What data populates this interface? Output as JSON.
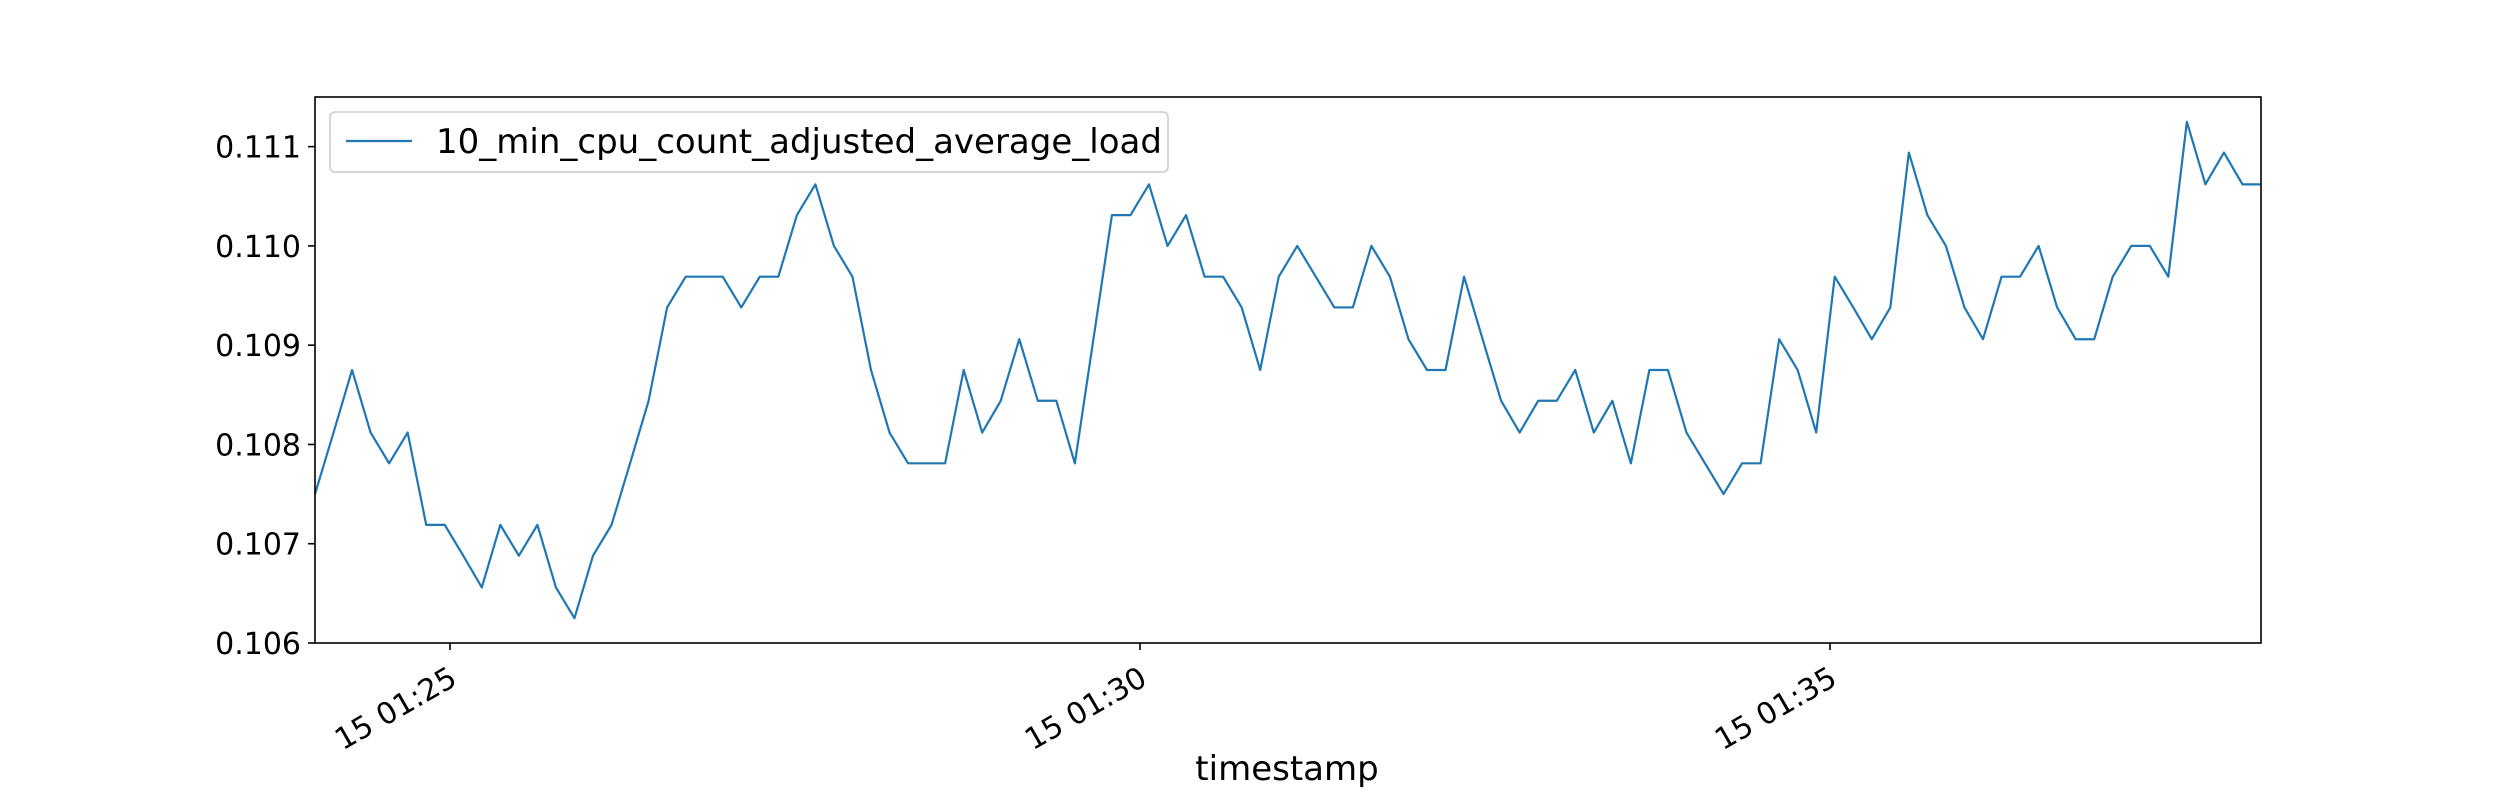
{
  "chart_data": {
    "type": "line",
    "title": "",
    "xlabel": "timestamp",
    "ylabel": "",
    "x_tick_labels": [
      "15 01:25",
      "15 01:30",
      "15 01:35"
    ],
    "y_tick_labels": [
      "0.106",
      "0.107",
      "0.108",
      "0.109",
      "0.110",
      "0.111"
    ],
    "y_ticks": [
      0.106,
      0.107,
      0.108,
      0.109,
      0.11,
      0.111
    ],
    "ylim": [
      0.106,
      0.1115
    ],
    "grid": false,
    "legend_position": "top-left",
    "series": [
      {
        "name": "10_min_cpu_count_adjusted_average_load",
        "color": "#1f77b4",
        "values": [
          0.1075,
          0.10812,
          0.10875,
          0.10812,
          0.10781,
          0.10812,
          0.10719,
          0.10719,
          0.10688,
          0.10656,
          0.10719,
          0.10688,
          0.10719,
          0.10656,
          0.10625,
          0.10688,
          0.10719,
          0.10781,
          0.10844,
          0.10938,
          0.10969,
          0.10969,
          0.10969,
          0.10938,
          0.10969,
          0.10969,
          0.11031,
          0.11062,
          0.11,
          0.10969,
          0.10875,
          0.10812,
          0.10781,
          0.10781,
          0.10781,
          0.10875,
          0.10812,
          0.10844,
          0.10906,
          0.10844,
          0.10844,
          0.10781,
          0.10906,
          0.11031,
          0.11031,
          0.11062,
          0.11,
          0.11031,
          0.10969,
          0.10969,
          0.10938,
          0.10875,
          0.10969,
          0.11,
          0.10969,
          0.10938,
          0.10938,
          0.11,
          0.10969,
          0.10906,
          0.10875,
          0.10875,
          0.10969,
          0.10906,
          0.10844,
          0.10812,
          0.10844,
          0.10844,
          0.10875,
          0.10812,
          0.10844,
          0.10781,
          0.10875,
          0.10875,
          0.10812,
          0.10781,
          0.1075,
          0.10781,
          0.10781,
          0.10906,
          0.10875,
          0.10812,
          0.10969,
          0.10938,
          0.10906,
          0.10938,
          0.11094,
          0.11031,
          0.11,
          0.10938,
          0.10906,
          0.10969,
          0.10969,
          0.11,
          0.10938,
          0.10906,
          0.10906,
          0.10969,
          0.11,
          0.11,
          0.10969,
          0.11125,
          0.11062,
          0.11094,
          0.11062,
          0.11062
        ]
      }
    ]
  }
}
